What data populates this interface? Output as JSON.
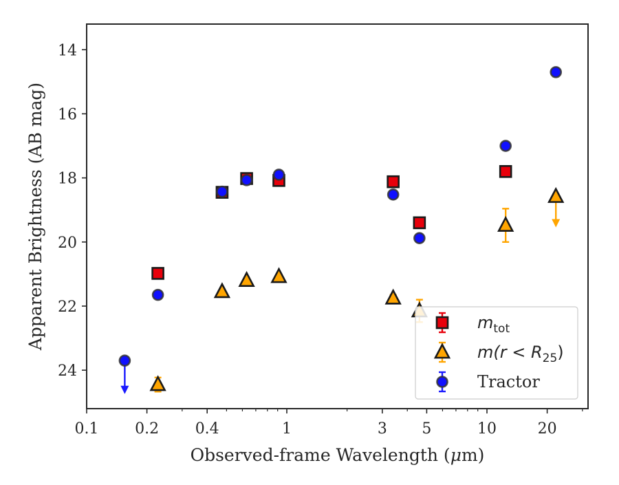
{
  "chart_data": {
    "type": "scatter",
    "xlabel_text": "Observed-frame Wavelength (",
    "xlabel_symbol": "μ",
    "xlabel_unit": "m)",
    "ylabel": "Apparent Brightness (AB mag)",
    "x_scale": "log",
    "y_inverted": true,
    "xlim": [
      0.1,
      32
    ],
    "ylim": [
      25.2,
      13.2
    ],
    "grid": false,
    "legend_position": "lower-right",
    "x_ticks": [
      {
        "value": 0.1,
        "label": "0.1"
      },
      {
        "value": 0.2,
        "label": "0.2"
      },
      {
        "value": 0.4,
        "label": "0.4"
      },
      {
        "value": 1,
        "label": "1"
      },
      {
        "value": 3,
        "label": "3"
      },
      {
        "value": 5,
        "label": "5"
      },
      {
        "value": 10,
        "label": "10"
      },
      {
        "value": 20,
        "label": "20"
      }
    ],
    "x_minor_ticks": [
      0.3,
      0.5,
      0.6,
      0.7,
      0.8,
      0.9,
      2,
      4,
      6,
      7,
      8,
      9,
      30
    ],
    "y_ticks": [
      {
        "value": 14,
        "label": "14"
      },
      {
        "value": 16,
        "label": "16"
      },
      {
        "value": 18,
        "label": "18"
      },
      {
        "value": 20,
        "label": "20"
      },
      {
        "value": 22,
        "label": "22"
      },
      {
        "value": 24,
        "label": "24"
      }
    ],
    "series": [
      {
        "id": "mtot",
        "legend_main": "m",
        "legend_sub": "tot",
        "marker": "square",
        "color": "#e8000b",
        "edge_color": "#1a1a1a",
        "errbar_color": "#e8000b",
        "points": [
          {
            "x": 0.227,
            "y": 20.98
          },
          {
            "x": 0.475,
            "y": 18.45
          },
          {
            "x": 0.63,
            "y": 18.02
          },
          {
            "x": 0.913,
            "y": 18.08
          },
          {
            "x": 3.4,
            "y": 18.12
          },
          {
            "x": 4.6,
            "y": 19.4
          },
          {
            "x": 12.4,
            "y": 17.8
          }
        ]
      },
      {
        "id": "mr25",
        "legend_main": "m(r < R",
        "legend_sub": "25",
        "legend_end": ")",
        "marker": "triangle",
        "color": "#ffa500",
        "edge_color": "#1a1a1a",
        "errbar_color": "#ffa500",
        "points": [
          {
            "x": 0.227,
            "y": 24.45,
            "err": 0.22
          },
          {
            "x": 0.475,
            "y": 21.55
          },
          {
            "x": 0.63,
            "y": 21.2
          },
          {
            "x": 0.913,
            "y": 21.08
          },
          {
            "x": 3.4,
            "y": 21.75,
            "err": 0.1
          },
          {
            "x": 4.6,
            "y": 22.15,
            "err": 0.35
          },
          {
            "x": 12.4,
            "y": 19.48,
            "err": 0.52
          },
          {
            "x": 22.1,
            "y": 18.58,
            "upper_limit": true,
            "arrow_to": 19.5
          }
        ]
      },
      {
        "id": "tractor",
        "legend_main": "Tractor",
        "marker": "circle",
        "color": "#1010ff",
        "edge_color": "#333333",
        "errbar_color": "#1a1aff",
        "points": [
          {
            "x": 0.155,
            "y": 23.7,
            "upper_limit": true,
            "arrow_to": 24.7
          },
          {
            "x": 0.227,
            "y": 21.65
          },
          {
            "x": 0.475,
            "y": 18.43
          },
          {
            "x": 0.63,
            "y": 18.07
          },
          {
            "x": 0.913,
            "y": 17.9
          },
          {
            "x": 3.4,
            "y": 18.52
          },
          {
            "x": 4.6,
            "y": 19.88
          },
          {
            "x": 12.4,
            "y": 17.0
          },
          {
            "x": 22.1,
            "y": 14.7
          }
        ]
      }
    ]
  }
}
